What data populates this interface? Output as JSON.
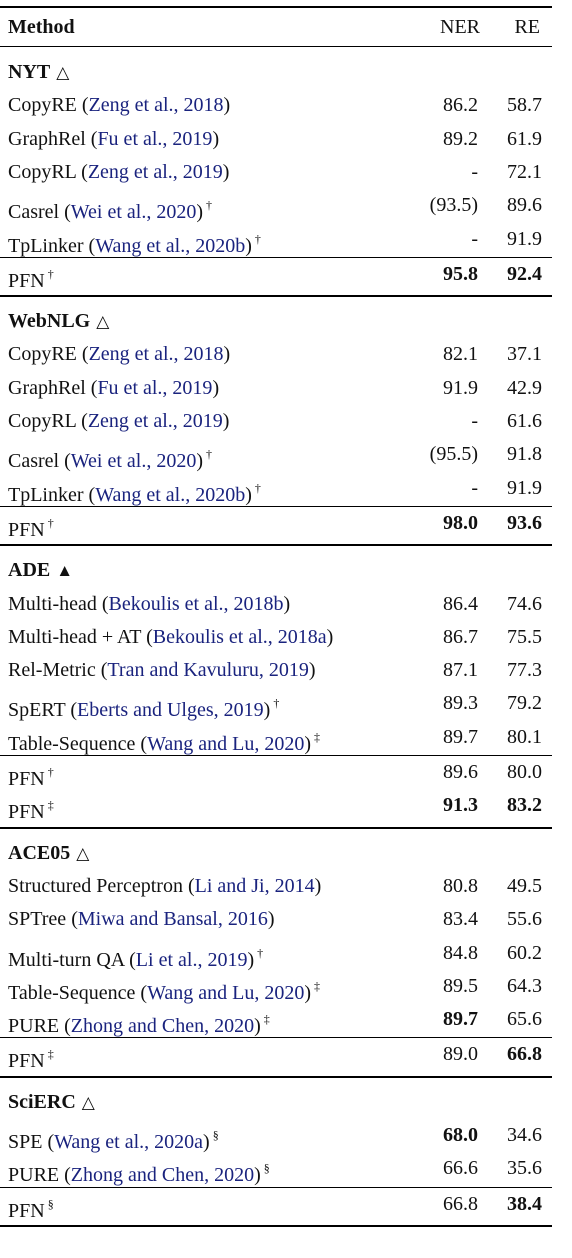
{
  "header": {
    "method": "Method",
    "ner": "NER",
    "re": "RE"
  },
  "sections": [
    {
      "title": "NYT",
      "symbol": "△",
      "rows": [
        {
          "name": "CopyRE",
          "cite": "Zeng et al., 2018",
          "mark": "",
          "ner": "86.2",
          "re": "58.7"
        },
        {
          "name": "GraphRel",
          "cite": "Fu et al., 2019",
          "mark": "",
          "ner": "89.2",
          "re": "61.9"
        },
        {
          "name": "CopyRL",
          "cite": "Zeng et al., 2019",
          "mark": "",
          "ner": "-",
          "re": "72.1"
        },
        {
          "name": "Casrel",
          "cite": "Wei et al., 2020",
          "mark": "†",
          "ner": "(93.5)",
          "re": "89.6"
        },
        {
          "name": "TpLinker",
          "cite": "Wang et al., 2020b",
          "mark": "†",
          "ner": "-",
          "re": "91.9"
        }
      ],
      "pfn": [
        {
          "name": "PFN",
          "mark": "†",
          "ner": "95.8",
          "re": "92.4",
          "ner_bold": true,
          "re_bold": true
        }
      ]
    },
    {
      "title": "WebNLG",
      "symbol": "△",
      "rows": [
        {
          "name": "CopyRE",
          "cite": "Zeng et al., 2018",
          "mark": "",
          "ner": "82.1",
          "re": "37.1"
        },
        {
          "name": "GraphRel",
          "cite": "Fu et al., 2019",
          "mark": "",
          "ner": "91.9",
          "re": "42.9"
        },
        {
          "name": "CopyRL",
          "cite": "Zeng et al., 2019",
          "mark": "",
          "ner": "-",
          "re": "61.6"
        },
        {
          "name": "Casrel",
          "cite": "Wei et al., 2020",
          "mark": "†",
          "ner": "(95.5)",
          "re": "91.8"
        },
        {
          "name": "TpLinker",
          "cite": "Wang et al., 2020b",
          "mark": "†",
          "ner": "-",
          "re": "91.9"
        }
      ],
      "pfn": [
        {
          "name": "PFN",
          "mark": "†",
          "ner": "98.0",
          "re": "93.6",
          "ner_bold": true,
          "re_bold": true
        }
      ]
    },
    {
      "title": "ADE",
      "symbol": "▲",
      "rows": [
        {
          "name": "Multi-head",
          "cite": "Bekoulis et al., 2018b",
          "mark": "",
          "ner": "86.4",
          "re": "74.6"
        },
        {
          "name": "Multi-head + AT",
          "cite": "Bekoulis et al., 2018a",
          "mark": "",
          "ner": "86.7",
          "re": "75.5"
        },
        {
          "name": "Rel-Metric",
          "cite": "Tran and Kavuluru, 2019",
          "mark": "",
          "ner": "87.1",
          "re": "77.3"
        },
        {
          "name": "SpERT",
          "cite": "Eberts and Ulges, 2019",
          "mark": "†",
          "ner": "89.3",
          "re": "79.2"
        },
        {
          "name": "Table-Sequence",
          "cite": "Wang and Lu, 2020",
          "mark": "‡",
          "ner": "89.7",
          "re": "80.1"
        }
      ],
      "pfn": [
        {
          "name": "PFN",
          "mark": "†",
          "ner": "89.6",
          "re": "80.0",
          "ner_bold": false,
          "re_bold": false
        },
        {
          "name": "PFN",
          "mark": "‡",
          "ner": "91.3",
          "re": "83.2",
          "ner_bold": true,
          "re_bold": true
        }
      ]
    },
    {
      "title": "ACE05",
      "symbol": "△",
      "rows": [
        {
          "name": "Structured Perceptron",
          "cite": "Li and Ji, 2014",
          "mark": "",
          "ner": "80.8",
          "re": "49.5"
        },
        {
          "name": "SPTree",
          "cite": "Miwa and Bansal, 2016",
          "mark": "",
          "ner": "83.4",
          "re": "55.6"
        },
        {
          "name": "Multi-turn QA",
          "cite": "Li et al., 2019",
          "mark": "†",
          "ner": "84.8",
          "re": "60.2"
        },
        {
          "name": "Table-Sequence",
          "cite": "Wang and Lu, 2020",
          "mark": "‡",
          "ner": "89.5",
          "re": "64.3"
        },
        {
          "name": "PURE",
          "cite": "Zhong and Chen, 2020",
          "mark": "‡",
          "ner": "89.7",
          "re": "65.6",
          "ner_bold": true
        }
      ],
      "pfn": [
        {
          "name": "PFN",
          "mark": "‡",
          "ner": "89.0",
          "re": "66.8",
          "ner_bold": false,
          "re_bold": true
        }
      ]
    },
    {
      "title": "SciERC",
      "symbol": "△",
      "rows": [
        {
          "name": "SPE",
          "cite": "Wang et al., 2020a",
          "mark": "§",
          "ner": "68.0",
          "re": "34.6",
          "ner_bold": true
        },
        {
          "name": "PURE",
          "cite": "Zhong and Chen, 2020",
          "mark": "§",
          "ner": "66.6",
          "re": "35.6"
        }
      ],
      "pfn": [
        {
          "name": "PFN",
          "mark": "§",
          "ner": "66.8",
          "re": "38.4",
          "ner_bold": false,
          "re_bold": true
        }
      ]
    }
  ]
}
